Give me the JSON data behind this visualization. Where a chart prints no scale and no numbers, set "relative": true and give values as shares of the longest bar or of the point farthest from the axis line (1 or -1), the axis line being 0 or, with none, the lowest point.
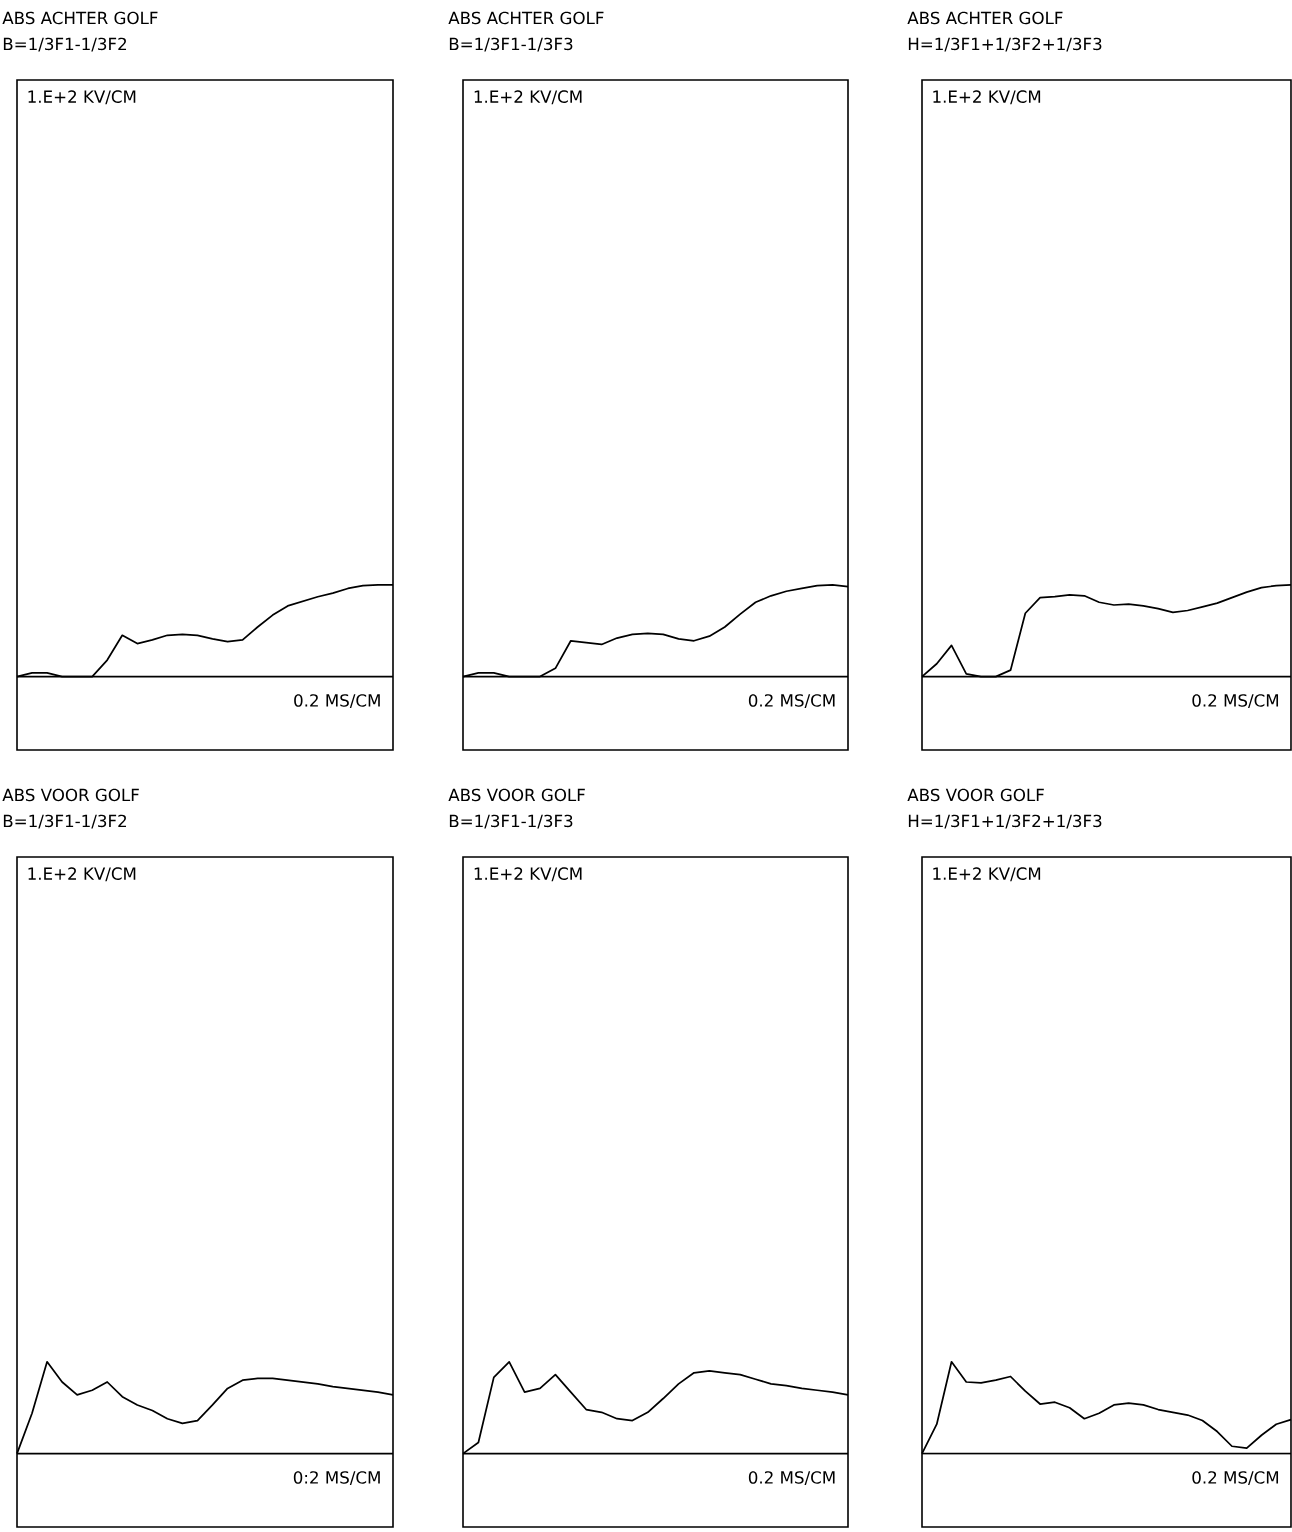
{
  "chart_data": [
    {
      "type": "line",
      "title": "ABS ACHTER GOLF",
      "subtitle": "B=1/3F1-1/3F2",
      "annotations": [
        "1.E+2 KV/CM",
        "0.2 MS/CM"
      ],
      "relative": true,
      "categories": [
        null,
        null,
        null,
        null,
        null,
        null,
        null,
        null,
        null,
        null,
        null,
        null,
        null,
        null,
        null,
        null,
        null,
        null,
        null,
        null,
        null,
        null,
        null,
        null,
        null,
        null
      ],
      "series": [
        {
          "color": "#000000",
          "values": [
            0,
            0.04,
            0.04,
            0,
            0,
            0,
            0.18,
            0.45,
            0.36,
            0.4,
            0.45,
            0.46,
            0.45,
            0.41,
            0.38,
            0.4,
            0.54,
            0.67,
            0.77,
            0.82,
            0.87,
            0.91,
            0.96,
            0.99,
            1,
            1
          ]
        }
      ]
    },
    {
      "type": "line",
      "title": "ABS ACHTER GOLF",
      "subtitle": "B=1/3F1-1/3F3",
      "annotations": [
        "1.E+2 KV/CM",
        "0.2 MS/CM"
      ],
      "relative": true,
      "categories": [
        null,
        null,
        null,
        null,
        null,
        null,
        null,
        null,
        null,
        null,
        null,
        null,
        null,
        null,
        null,
        null,
        null,
        null,
        null,
        null,
        null,
        null,
        null,
        null,
        null,
        null
      ],
      "series": [
        {
          "color": "#000000",
          "values": [
            0,
            0.04,
            0.04,
            0,
            0,
            0,
            0.09,
            0.39,
            0.37,
            0.35,
            0.42,
            0.46,
            0.47,
            0.46,
            0.41,
            0.39,
            0.44,
            0.54,
            0.68,
            0.81,
            0.88,
            0.93,
            0.96,
            0.99,
            1,
            0.98
          ]
        }
      ]
    },
    {
      "type": "line",
      "title": "ABS ACHTER GOLF",
      "subtitle": "H=1/3F1+1/3F2+1/3F3",
      "annotations": [
        "1.E+2 KV/CM",
        "0.2 MS/CM"
      ],
      "relative": true,
      "categories": [
        null,
        null,
        null,
        null,
        null,
        null,
        null,
        null,
        null,
        null,
        null,
        null,
        null,
        null,
        null,
        null,
        null,
        null,
        null,
        null,
        null,
        null,
        null,
        null,
        null,
        null
      ],
      "series": [
        {
          "color": "#000000",
          "values": [
            0,
            0.14,
            0.34,
            0.03,
            0,
            0,
            0.07,
            0.69,
            0.86,
            0.87,
            0.89,
            0.88,
            0.81,
            0.78,
            0.79,
            0.77,
            0.74,
            0.7,
            0.72,
            0.76,
            0.8,
            0.86,
            0.92,
            0.97,
            0.99,
            1
          ]
        }
      ]
    },
    {
      "type": "line",
      "title": "ABS VOOR GOLF",
      "subtitle": "B=1/3F1-1/3F2",
      "annotations": [
        "1.E+2 KV/CM",
        "0:2 MS/CM"
      ],
      "relative": true,
      "categories": [
        null,
        null,
        null,
        null,
        null,
        null,
        null,
        null,
        null,
        null,
        null,
        null,
        null,
        null,
        null,
        null,
        null,
        null,
        null,
        null,
        null,
        null,
        null,
        null,
        null,
        null
      ],
      "series": [
        {
          "color": "#000000",
          "values": [
            0,
            0.44,
            1,
            0.78,
            0.64,
            0.69,
            0.78,
            0.62,
            0.53,
            0.47,
            0.38,
            0.33,
            0.36,
            0.53,
            0.71,
            0.8,
            0.82,
            0.82,
            0.8,
            0.78,
            0.76,
            0.73,
            0.71,
            0.69,
            0.67,
            0.64
          ]
        }
      ]
    },
    {
      "type": "line",
      "title": "ABS VOOR GOLF",
      "subtitle": "B=1/3F1-1/3F3",
      "annotations": [
        "1.E+2 KV/CM",
        "0.2 MS/CM"
      ],
      "relative": true,
      "categories": [
        null,
        null,
        null,
        null,
        null,
        null,
        null,
        null,
        null,
        null,
        null,
        null,
        null,
        null,
        null,
        null,
        null,
        null,
        null,
        null,
        null,
        null,
        null,
        null,
        null,
        null
      ],
      "series": [
        {
          "color": "#000000",
          "values": [
            0,
            0.12,
            0.83,
            1,
            0.67,
            0.71,
            0.86,
            0.67,
            0.48,
            0.45,
            0.38,
            0.36,
            0.45,
            0.6,
            0.76,
            0.88,
            0.9,
            0.88,
            0.86,
            0.81,
            0.76,
            0.74,
            0.71,
            0.69,
            0.67,
            0.64
          ]
        }
      ]
    },
    {
      "type": "line",
      "title": "ABS VOOR GOLF",
      "subtitle": "H=1/3F1+1/3F2+1/3F3",
      "annotations": [
        "1.E+2 KV/CM",
        "0.2 MS/CM"
      ],
      "relative": true,
      "categories": [
        null,
        null,
        null,
        null,
        null,
        null,
        null,
        null,
        null,
        null,
        null,
        null,
        null,
        null,
        null,
        null,
        null,
        null,
        null,
        null,
        null,
        null,
        null,
        null,
        null,
        null
      ],
      "series": [
        {
          "color": "#000000",
          "values": [
            0,
            0.32,
            1,
            0.78,
            0.77,
            0.8,
            0.84,
            0.68,
            0.54,
            0.56,
            0.5,
            0.38,
            0.44,
            0.53,
            0.55,
            0.53,
            0.48,
            0.45,
            0.42,
            0.36,
            0.24,
            0.08,
            0.06,
            0.2,
            0.32,
            0.37
          ]
        }
      ]
    }
  ]
}
